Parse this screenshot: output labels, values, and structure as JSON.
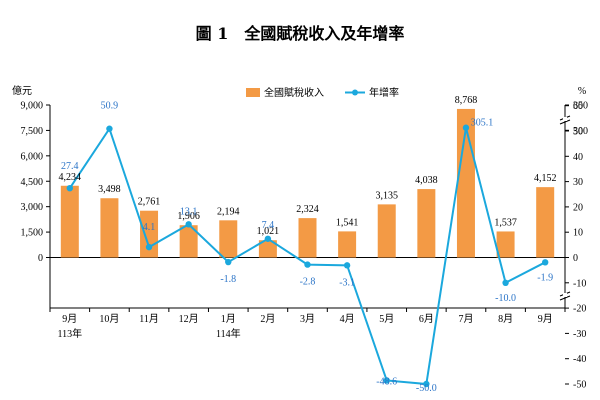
{
  "title": "圖 1　全國賦稅收入及年增率",
  "colors": {
    "bar": "#F39A45",
    "line": "#1BA8DD",
    "line_label": "#2B74C7",
    "axis": "#000000"
  },
  "chart_data": {
    "type": "bar+line",
    "categories": [
      "9月",
      "10月",
      "11月",
      "12月",
      "1月",
      "2月",
      "3月",
      "4月",
      "5月",
      "6月",
      "7月",
      "8月",
      "9月"
    ],
    "category_sublabels": [
      "113年",
      "",
      "",
      "",
      "114年",
      "",
      "",
      "",
      "",
      "",
      "",
      "",
      ""
    ],
    "series": [
      {
        "name": "全國賦稅收入",
        "type": "bar",
        "axis": "left",
        "values": [
          4234,
          3498,
          2761,
          1906,
          2194,
          1021,
          2324,
          1541,
          3135,
          4038,
          8768,
          1537,
          4152
        ],
        "labels": [
          "4,234",
          "3,498",
          "2,761",
          "1,906",
          "2,194",
          "1,021",
          "2,324",
          "1,541",
          "3,135",
          "4,038",
          "8,768",
          "1,537",
          "4,152"
        ]
      },
      {
        "name": "年增率",
        "type": "line",
        "axis": "right",
        "values": [
          27.4,
          50.9,
          4.1,
          13.1,
          -1.8,
          7.4,
          -2.8,
          -3.1,
          -48.6,
          -50.0,
          305.1,
          -10.0,
          -1.9
        ],
        "labels": [
          "27.4",
          "50.9",
          "4.1",
          "13.1",
          "-1.8",
          "7.4",
          "-2.8",
          "-3.1",
          "-48.6",
          "-50.0",
          "305.1",
          "-10.0",
          "-1.9"
        ]
      }
    ],
    "left_axis": {
      "unit": "億元",
      "ylim": [
        0,
        9000
      ],
      "ticks": [
        "0",
        "1,500",
        "3,000",
        "4,500",
        "6,000",
        "7,500",
        "9,000"
      ]
    },
    "right_axis": {
      "unit": "%",
      "broken": true,
      "ticks_lower": [
        "-50",
        "-40",
        "-30",
        "-20",
        "-10",
        "0",
        "10",
        "20",
        "30",
        "40",
        "50",
        "60"
      ],
      "ticks_upper": [
        "300",
        "350"
      ]
    },
    "legend": {
      "position": "top-center"
    },
    "grid": false
  }
}
